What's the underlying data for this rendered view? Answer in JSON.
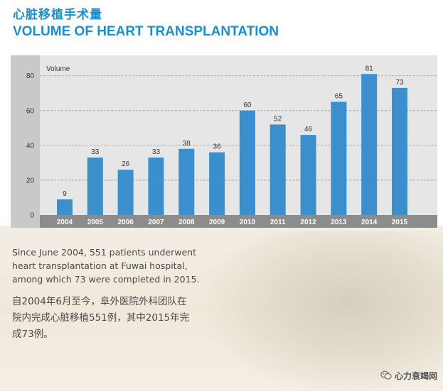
{
  "header": {
    "title_cn": "心脏移植手术量",
    "title_en": "VOLUME OF HEART TRANSPLANTATION"
  },
  "chart_data": {
    "type": "bar",
    "title": "",
    "ylabel": "Volume",
    "xlabel": "",
    "categories": [
      "2004",
      "2005",
      "2006",
      "2007",
      "2008",
      "2009",
      "2010",
      "2011",
      "2012",
      "2013",
      "2014",
      "2015"
    ],
    "values": [
      9,
      33,
      26,
      33,
      38,
      36,
      60,
      52,
      46,
      65,
      81,
      73
    ],
    "ylim": [
      0,
      86
    ],
    "yticks": [
      0,
      20,
      40,
      60,
      80
    ],
    "grid": true,
    "bar_color": "#3a8fcc",
    "axis_band_color": "#8c8c8c",
    "background_color": "#e6e6e6"
  },
  "description": {
    "en_lines": [
      "Since June 2004, 551 patients underwent",
      "heart transplantation at Fuwai hospital,",
      "among which 73 were completed in 2015."
    ],
    "cn_lines": [
      "自2004年6月至今，阜外医院外科团队在",
      "院内完成心脏移植551例，其中2015年完",
      "成73例。"
    ]
  },
  "watermark": {
    "text": "心力衰竭网",
    "icon": "wechat-icon"
  },
  "colors": {
    "accent": "#1a8fd0",
    "text": "#4a4a4a"
  }
}
